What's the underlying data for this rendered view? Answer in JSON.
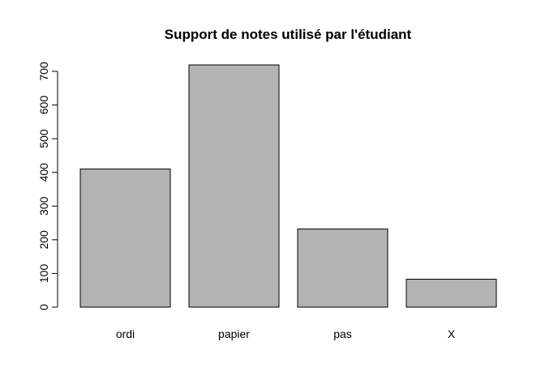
{
  "chart_data": {
    "type": "bar",
    "title": "Support de notes utilisé par l'étudiant",
    "xlabel": "",
    "ylabel": "",
    "categories": [
      "ordi",
      "papier",
      "pas",
      "X"
    ],
    "values": [
      410,
      719,
      232,
      83
    ],
    "ylim": [
      0,
      700
    ],
    "yticks": [
      "0",
      "100",
      "200",
      "300",
      "400",
      "500",
      "600",
      "700"
    ],
    "grid": false,
    "bar_color": "#b3b3b3",
    "edge_color": "#000000"
  }
}
